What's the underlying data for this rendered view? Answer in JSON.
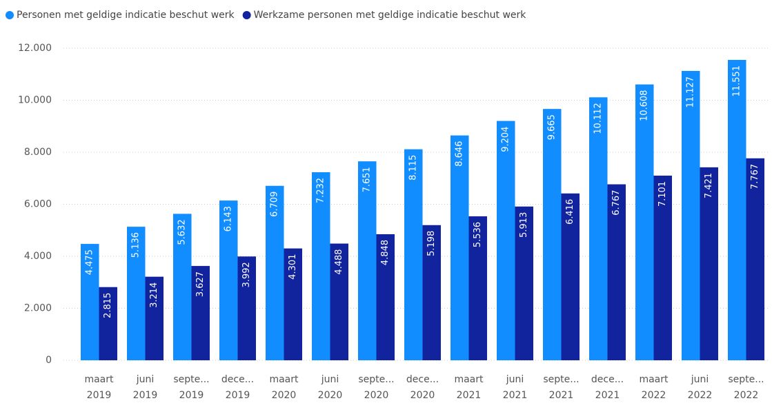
{
  "chart_data": {
    "type": "bar",
    "categories": [
      [
        "maart",
        "2019"
      ],
      [
        "juni",
        "2019"
      ],
      [
        "septe...",
        "2019"
      ],
      [
        "dece...",
        "2019"
      ],
      [
        "maart",
        "2020"
      ],
      [
        "juni",
        "2020"
      ],
      [
        "septe...",
        "2020"
      ],
      [
        "dece...",
        "2020"
      ],
      [
        "maart",
        "2021"
      ],
      [
        "juni",
        "2021"
      ],
      [
        "septe...",
        "2021"
      ],
      [
        "dece...",
        "2021"
      ],
      [
        "maart",
        "2022"
      ],
      [
        "juni",
        "2022"
      ],
      [
        "septe...",
        "2022"
      ]
    ],
    "series": [
      {
        "name": "Personen met geldige indicatie beschut werk",
        "color": "#118dff",
        "values": [
          4475,
          5136,
          5632,
          6143,
          6709,
          7232,
          7651,
          8115,
          8646,
          9204,
          9665,
          10112,
          10608,
          11127,
          11551
        ],
        "value_labels": [
          "4.475",
          "5.136",
          "5.632",
          "6.143",
          "6.709",
          "7.232",
          "7.651",
          "8.115",
          "8.646",
          "9.204",
          "9.665",
          "10.112",
          "10.608",
          "11.127",
          "11.551"
        ]
      },
      {
        "name": "Werkzame personen met geldige indicatie beschut werk",
        "color": "#12239e",
        "values": [
          2815,
          3214,
          3627,
          3992,
          4301,
          4488,
          4848,
          5198,
          5536,
          5913,
          6416,
          6767,
          7101,
          7421,
          7767
        ],
        "value_labels": [
          "2.815",
          "3.214",
          "3.627",
          "3.992",
          "4.301",
          "4.488",
          "4.848",
          "5.198",
          "5.536",
          "5.913",
          "6.416",
          "6.767",
          "7.101",
          "7.421",
          "7.767"
        ]
      }
    ],
    "ylim": [
      0,
      12000
    ],
    "yticks": [
      0,
      {
        "value": 2000,
        "label": "2.000"
      },
      {
        "value": 4000,
        "label": "4.000"
      },
      {
        "value": 6000,
        "label": "6.000"
      },
      {
        "value": 8000,
        "label": "8.000"
      },
      {
        "value": 10000,
        "label": "10.000"
      },
      {
        "value": 12000,
        "label": "12.000"
      }
    ],
    "grid": true
  }
}
